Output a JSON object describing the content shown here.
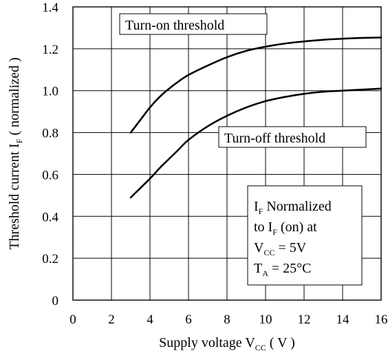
{
  "chart_data": {
    "type": "line",
    "x_axis": {
      "label_main": "Supply voltage V",
      "label_sub": "CC",
      "label_unit": " ( V )",
      "min": 0,
      "max": 16,
      "ticks": [
        0,
        2,
        4,
        6,
        8,
        10,
        12,
        14,
        16
      ],
      "tick_labels": [
        "0",
        "2",
        "4",
        "6",
        "8",
        "10",
        "12",
        "14",
        "16"
      ]
    },
    "y_axis": {
      "label_main": "Threshold current I",
      "label_sub": "F",
      "label_unit": " ( normalized )",
      "min": 0,
      "max": 1.4,
      "ticks": [
        0,
        0.2,
        0.4,
        0.6,
        0.8,
        1.0,
        1.2,
        1.4
      ],
      "tick_labels": [
        "0",
        "0.2",
        "0.4",
        "0.6",
        "0.8",
        "1.0",
        "1.2",
        "1.4"
      ]
    },
    "grid": true,
    "series": [
      {
        "name": "Turn-on threshold",
        "x": [
          3.0,
          3.5,
          4.0,
          4.5,
          5.0,
          5.5,
          6.0,
          7.0,
          8.0,
          9.0,
          10.0,
          11.0,
          12.0,
          13.0,
          14.0,
          15.0,
          16.0
        ],
        "y": [
          0.8,
          0.86,
          0.92,
          0.97,
          1.01,
          1.045,
          1.075,
          1.12,
          1.16,
          1.19,
          1.21,
          1.225,
          1.235,
          1.243,
          1.248,
          1.252,
          1.254
        ]
      },
      {
        "name": "Turn-off threshold",
        "x": [
          3.0,
          3.5,
          4.0,
          4.5,
          5.0,
          5.5,
          6.0,
          7.0,
          8.0,
          9.0,
          10.0,
          11.0,
          12.0,
          13.0,
          14.0,
          15.0,
          16.0
        ],
        "y": [
          0.49,
          0.535,
          0.58,
          0.63,
          0.675,
          0.72,
          0.765,
          0.83,
          0.88,
          0.92,
          0.95,
          0.97,
          0.985,
          0.995,
          1.0,
          1.005,
          1.01
        ]
      }
    ],
    "annotations": {
      "turn_on": "Turn-on threshold",
      "turn_off": "Turn-off threshold",
      "note": {
        "line1_main": "I",
        "line1_sub": "F",
        "line1_rest": " Normalized",
        "line2_main": "to I",
        "line2_sub": "F",
        "line2_rest": " (on) at",
        "line3_main": "V",
        "line3_sub": "CC",
        "line3_rest": " = 5V",
        "line4_main": "T",
        "line4_sub": "A",
        "line4_rest": " = 25°C"
      }
    }
  }
}
